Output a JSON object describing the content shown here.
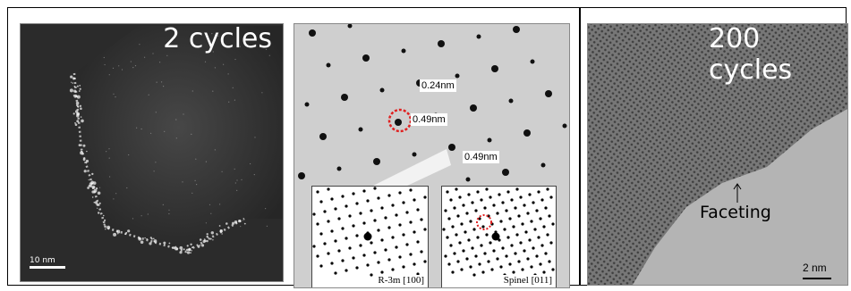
{
  "panel_a": {
    "title": "2 cycles",
    "scale_bar": "10 nm"
  },
  "panel_b": {
    "spacings": [
      "0.24nm",
      "0.49nm",
      "0.49nm"
    ],
    "inset_left": "R-3m [100]",
    "inset_right": "Spinel [011]"
  },
  "panel_c": {
    "title": "200 cycles",
    "annotation": "Faceting",
    "scale_bar": "2 nm"
  },
  "colors": {
    "highlight_circle": "#e02020",
    "frame": "#000000"
  }
}
